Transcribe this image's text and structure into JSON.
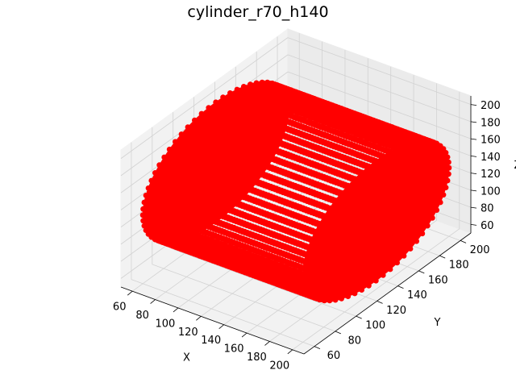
{
  "chart_data": {
    "type": "scatter",
    "title": "cylinder_r70_h140",
    "xlabel": "X",
    "ylabel": "Y",
    "zlabel": "Z",
    "xlim": [
      50,
      210
    ],
    "ylim": [
      50,
      210
    ],
    "zlim": [
      50,
      210
    ],
    "x_ticks": [
      60,
      80,
      100,
      120,
      140,
      160,
      180,
      200
    ],
    "y_ticks": [
      60,
      80,
      100,
      120,
      140,
      160,
      180,
      200
    ],
    "z_ticks": [
      60,
      80,
      100,
      120,
      140,
      160,
      180,
      200
    ],
    "grid": true,
    "series": [
      {
        "shape": "cylinder",
        "axis": "x",
        "center_y": 130,
        "center_z": 130,
        "radius": 70,
        "x_start": 60,
        "x_end": 200,
        "color": "#ff0000"
      }
    ]
  }
}
